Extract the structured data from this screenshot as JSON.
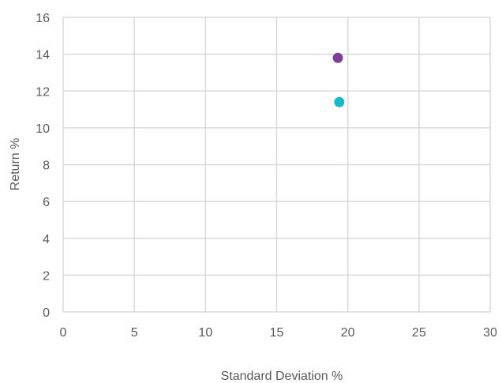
{
  "chart_data": {
    "type": "scatter",
    "title": "",
    "xlabel": "Standard Deviation %",
    "ylabel": "Return %",
    "xlim": [
      0,
      30
    ],
    "ylim": [
      0,
      16
    ],
    "xticks": [
      0,
      5,
      10,
      15,
      20,
      25,
      30
    ],
    "yticks": [
      0,
      2,
      4,
      6,
      8,
      10,
      12,
      14,
      16
    ],
    "grid": true,
    "legend": "none",
    "series": [
      {
        "color": "#7e3f98",
        "points": [
          {
            "x": 19.3,
            "y": 13.8
          }
        ]
      },
      {
        "color": "#17b8c8",
        "points": [
          {
            "x": 19.4,
            "y": 11.4
          }
        ]
      }
    ]
  }
}
